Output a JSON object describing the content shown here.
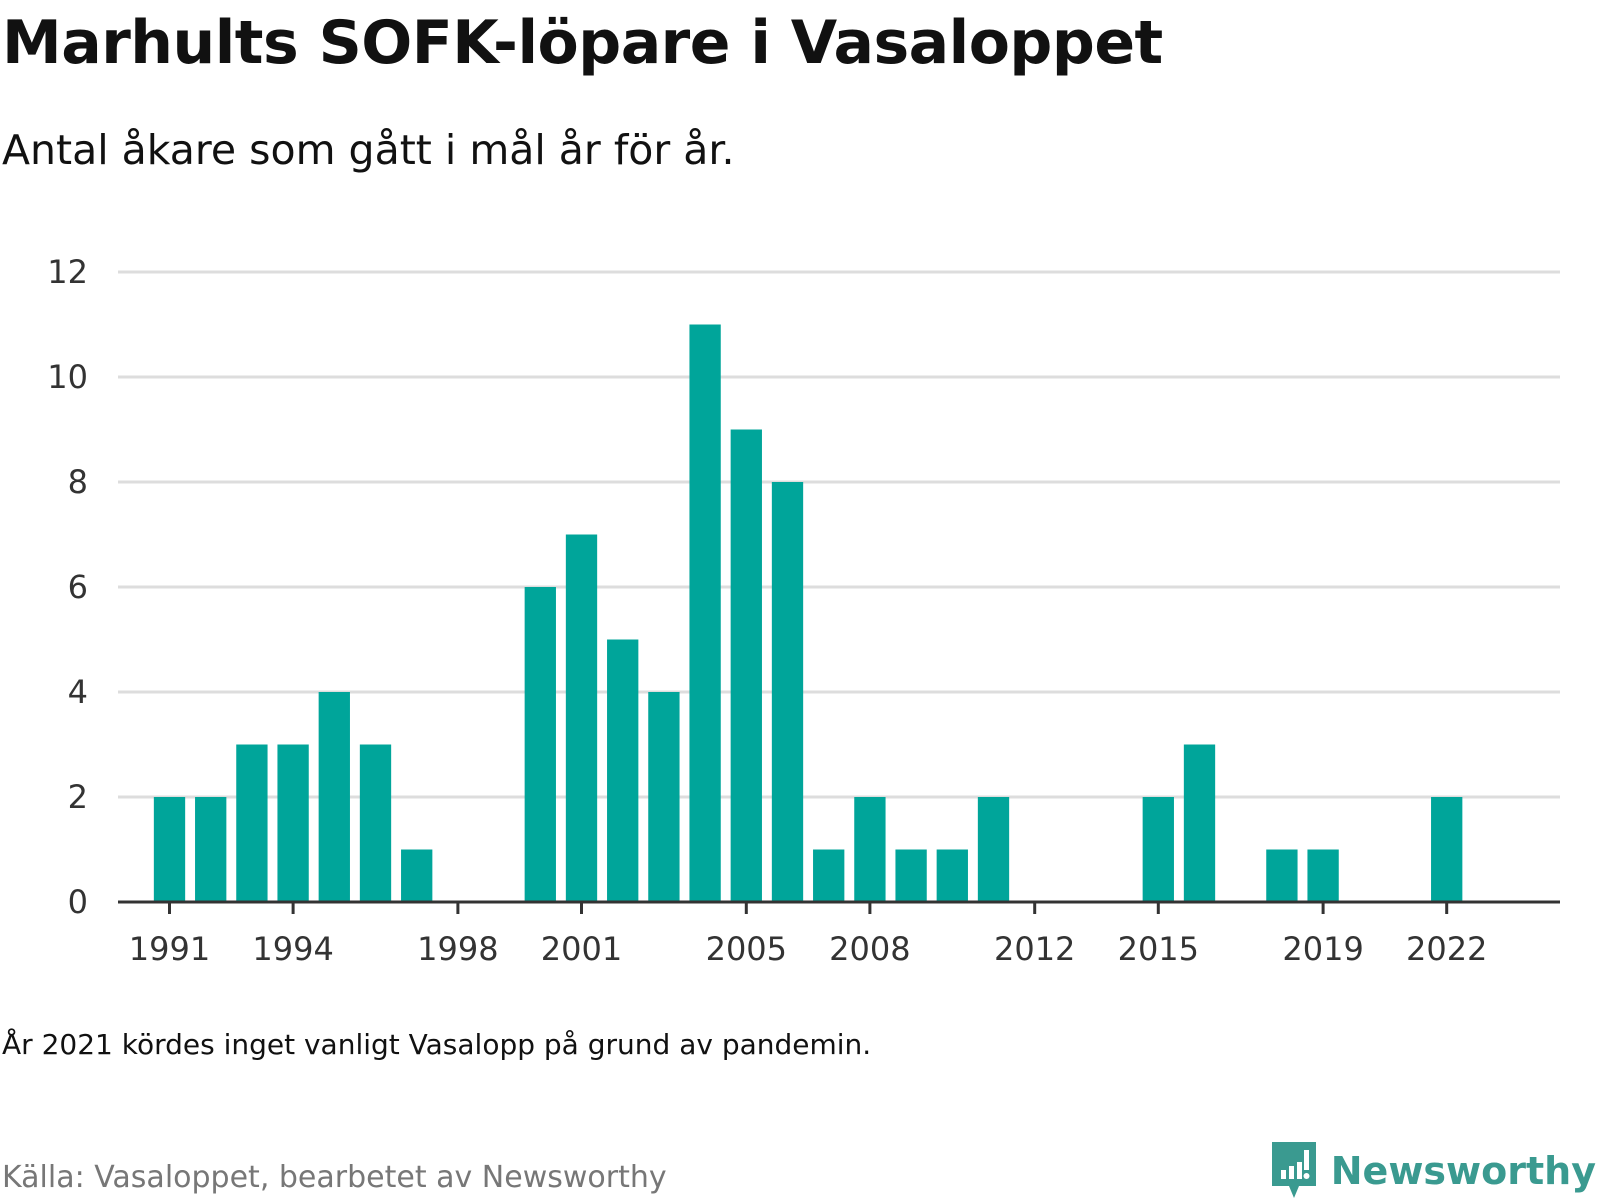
{
  "header": {
    "title": "Marhults SOFK-löpare i Vasaloppet",
    "subtitle": "Antal åkare som gått i mål år för år."
  },
  "footer": {
    "note": "År 2021 kördes inget vanligt Vasalopp på grund av pandemin.",
    "source": "Källa: Vasaloppet, bearbetet av Newsworthy",
    "brand": "Newsworthy",
    "brand_icon": "newsworthy-logo-icon"
  },
  "colors": {
    "bar": "#00a59a",
    "grid": "#dddddd",
    "axis": "#333333",
    "brand": "#3a9a90"
  },
  "chart_data": {
    "type": "bar",
    "x": [
      1991,
      1992,
      1993,
      1994,
      1995,
      1996,
      1997,
      1998,
      1999,
      2000,
      2001,
      2002,
      2003,
      2004,
      2005,
      2006,
      2007,
      2008,
      2009,
      2010,
      2011,
      2012,
      2013,
      2014,
      2015,
      2016,
      2017,
      2018,
      2019,
      2020,
      2021,
      2022
    ],
    "values": [
      2,
      2,
      3,
      3,
      4,
      3,
      1,
      0,
      0,
      6,
      7,
      5,
      4,
      11,
      9,
      8,
      1,
      2,
      1,
      1,
      2,
      0,
      0,
      0,
      2,
      3,
      0,
      1,
      1,
      0,
      0,
      2
    ],
    "xticks": [
      1991,
      1994,
      1998,
      2001,
      2005,
      2008,
      2012,
      2015,
      2019,
      2022
    ],
    "yticks": [
      0,
      2,
      4,
      6,
      8,
      10,
      12
    ],
    "ylim": [
      0,
      12
    ],
    "xlim": [
      1989.75,
      2024.75
    ],
    "grid": true,
    "legend": "none"
  }
}
